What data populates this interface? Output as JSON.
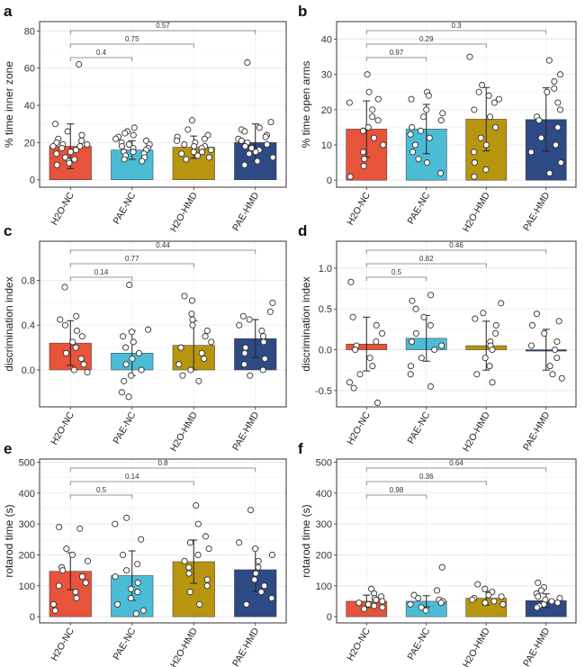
{
  "chart_data": [
    {
      "panel": "a",
      "type": "bar",
      "ylabel": "% time inner zone",
      "ylim": [
        -4,
        85
      ],
      "yticks": [
        0,
        20,
        40,
        60,
        80
      ],
      "categories": [
        "H2O-NC",
        "PAE-NC",
        "H2O-HMD",
        "PAE-HMD"
      ],
      "values": [
        18,
        16,
        17.5,
        20
      ],
      "errors": [
        12,
        5,
        6,
        10
      ],
      "colors": [
        "#e8533b",
        "#4bbcd6",
        "#b8950f",
        "#2e4a85"
      ],
      "points": [
        [
          62,
          30,
          26,
          24,
          22,
          21,
          20,
          19,
          19,
          18,
          18,
          17,
          16,
          15,
          14,
          12,
          11,
          10,
          9,
          8
        ],
        [
          28,
          26,
          25,
          24,
          23,
          22,
          21,
          20,
          19,
          19,
          18,
          17,
          17,
          16,
          15,
          15,
          14,
          13,
          12,
          11,
          10
        ],
        [
          32,
          27,
          24,
          23,
          22,
          21,
          20,
          19,
          18,
          18,
          17,
          16,
          15,
          15,
          14,
          13,
          12,
          11
        ],
        [
          63,
          31,
          28,
          27,
          26,
          24,
          23,
          22,
          21,
          20,
          19,
          18,
          17,
          16,
          15,
          14,
          12,
          10,
          8
        ]
      ],
      "comparisons": [
        {
          "from": 0,
          "to": 1,
          "label": "0.4"
        },
        {
          "from": 0,
          "to": 2,
          "label": "0.75"
        },
        {
          "from": 0,
          "to": 3,
          "label": "0.57"
        }
      ]
    },
    {
      "panel": "b",
      "type": "bar",
      "ylabel": "% time open arms",
      "ylim": [
        -2,
        45
      ],
      "yticks": [
        0,
        10,
        20,
        30,
        40
      ],
      "categories": [
        "H2O-NC",
        "PAE-NC",
        "H2O-HMD",
        "PAE-HMD"
      ],
      "values": [
        14.5,
        14.5,
        17.3,
        17.2
      ],
      "errors": [
        8,
        7,
        9,
        9
      ],
      "colors": [
        "#e8533b",
        "#4bbcd6",
        "#b8950f",
        "#2e4a85"
      ],
      "points": [
        [
          30,
          25,
          23,
          22,
          20,
          18,
          17,
          15,
          14,
          12,
          10,
          8,
          6,
          4,
          1
        ],
        [
          25,
          24,
          23,
          20,
          19,
          18,
          17,
          15,
          14,
          13,
          12,
          10,
          8,
          6,
          5,
          2
        ],
        [
          35,
          27,
          25,
          24,
          23,
          22,
          20,
          18,
          15,
          12,
          10,
          8,
          5,
          3,
          1
        ],
        [
          34,
          30,
          28,
          26,
          25,
          22,
          20,
          18,
          17,
          15,
          12,
          10,
          8,
          5,
          2
        ]
      ],
      "comparisons": [
        {
          "from": 0,
          "to": 1,
          "label": "0.97"
        },
        {
          "from": 0,
          "to": 2,
          "label": "0.29"
        },
        {
          "from": 0,
          "to": 3,
          "label": "0.3"
        }
      ]
    },
    {
      "panel": "c",
      "type": "bar",
      "ylabel": "discrimination index",
      "ylim": [
        -0.33,
        1.15
      ],
      "yticks": [
        0.0,
        0.4,
        0.8
      ],
      "ytick_labels": [
        "0.0",
        "0.4",
        "0.8"
      ],
      "categories": [
        "H2O-NC",
        "PAE-NC",
        "H2O-HMD",
        "PAE-HMD"
      ],
      "values": [
        0.24,
        0.15,
        0.22,
        0.28
      ],
      "errors": [
        0.2,
        0.2,
        0.22,
        0.17
      ],
      "colors": [
        "#e8533b",
        "#4bbcd6",
        "#b8950f",
        "#2e4a85"
      ],
      "points": [
        [
          0.74,
          0.48,
          0.45,
          0.4,
          0.35,
          0.3,
          0.25,
          0.2,
          0.15,
          0.1,
          0.05,
          0.0,
          -0.02
        ],
        [
          0.76,
          0.36,
          0.34,
          0.3,
          0.25,
          0.2,
          0.15,
          0.1,
          0.05,
          0.0,
          -0.05,
          -0.1,
          -0.2,
          -0.24
        ],
        [
          0.66,
          0.62,
          0.5,
          0.45,
          0.4,
          0.35,
          0.3,
          0.25,
          0.2,
          0.15,
          0.1,
          0.05,
          0.0,
          -0.05,
          -0.1
        ],
        [
          0.6,
          0.52,
          0.48,
          0.45,
          0.4,
          0.35,
          0.3,
          0.25,
          0.2,
          0.15,
          0.1,
          0.05,
          0.0,
          -0.05
        ]
      ],
      "comparisons": [
        {
          "from": 0,
          "to": 1,
          "label": "0.14"
        },
        {
          "from": 0,
          "to": 2,
          "label": "0.77"
        },
        {
          "from": 0,
          "to": 3,
          "label": "0.44"
        }
      ]
    },
    {
      "panel": "d",
      "type": "bar",
      "ylabel": "discrimination index",
      "ylim": [
        -0.7,
        1.33
      ],
      "yticks": [
        -0.5,
        0.0,
        0.5,
        1.0
      ],
      "ytick_labels": [
        "-0.5",
        "0.0",
        "0.5",
        "1.0"
      ],
      "categories": [
        "H2O-NC",
        "PAE-NC",
        "H2O-HMD",
        "PAE-HMD"
      ],
      "values": [
        0.07,
        0.14,
        0.05,
        0.0
      ],
      "errors": [
        0.33,
        0.28,
        0.3,
        0.25
      ],
      "colors": [
        "#e8533b",
        "#4bbcd6",
        "#b8950f",
        "#2e4a85"
      ],
      "points": [
        [
          0.83,
          0.4,
          0.3,
          0.2,
          0.1,
          0.05,
          0.0,
          -0.1,
          -0.2,
          -0.3,
          -0.4,
          -0.47,
          -0.65
        ],
        [
          0.67,
          0.6,
          0.5,
          0.4,
          0.3,
          0.2,
          0.1,
          0.05,
          0.0,
          -0.1,
          -0.2,
          -0.3,
          -0.45
        ],
        [
          0.57,
          0.45,
          0.38,
          0.3,
          0.2,
          0.1,
          0.05,
          0.0,
          -0.1,
          -0.2,
          -0.3,
          -0.4
        ],
        [
          0.44,
          0.35,
          0.3,
          0.2,
          0.1,
          0.05,
          0.0,
          -0.1,
          -0.2,
          -0.3,
          -0.35
        ]
      ],
      "comparisons": [
        {
          "from": 0,
          "to": 1,
          "label": "0.5"
        },
        {
          "from": 0,
          "to": 2,
          "label": "0.82"
        },
        {
          "from": 0,
          "to": 3,
          "label": "0.46"
        }
      ]
    },
    {
      "panel": "e",
      "type": "bar",
      "ylabel": "rotarod time (s)",
      "ylim": [
        -20,
        510
      ],
      "yticks": [
        0,
        100,
        200,
        300,
        400,
        500
      ],
      "categories": [
        "H2O-NC",
        "PAE-NC",
        "H2O-HMD",
        "PAE-HMD"
      ],
      "values": [
        147,
        133,
        178,
        152
      ],
      "errors": [
        60,
        80,
        70,
        70
      ],
      "colors": [
        "#e8533b",
        "#4bbcd6",
        "#b8950f",
        "#2e4a85"
      ],
      "points": [
        [
          290,
          285,
          220,
          200,
          180,
          160,
          150,
          130,
          110,
          100,
          80,
          60,
          40,
          20
        ],
        [
          320,
          300,
          250,
          200,
          170,
          150,
          130,
          110,
          90,
          80,
          60,
          40,
          20,
          10
        ],
        [
          360,
          300,
          260,
          240,
          220,
          200,
          180,
          160,
          140,
          120,
          100,
          80,
          40
        ],
        [
          345,
          240,
          220,
          200,
          180,
          160,
          140,
          120,
          100,
          80,
          60,
          40
        ]
      ],
      "comparisons": [
        {
          "from": 0,
          "to": 1,
          "label": "0.5"
        },
        {
          "from": 0,
          "to": 2,
          "label": "0.14"
        },
        {
          "from": 0,
          "to": 3,
          "label": "0.8"
        }
      ]
    },
    {
      "panel": "f",
      "type": "bar",
      "ylabel": "rotarod time (s)",
      "ylim": [
        -20,
        510
      ],
      "yticks": [
        0,
        100,
        200,
        300,
        400,
        500
      ],
      "categories": [
        "H2O-NC",
        "PAE-NC",
        "H2O-HMD",
        "PAE-HMD"
      ],
      "values": [
        50,
        50,
        60,
        52
      ],
      "errors": [
        20,
        18,
        22,
        22
      ],
      "colors": [
        "#e8533b",
        "#4bbcd6",
        "#b8950f",
        "#2e4a85"
      ],
      "points": [
        [
          90,
          75,
          65,
          60,
          55,
          50,
          45,
          40,
          35,
          30,
          25
        ],
        [
          160,
          85,
          70,
          60,
          55,
          50,
          45,
          40,
          30,
          20
        ],
        [
          105,
          90,
          80,
          70,
          65,
          60,
          55,
          50,
          45,
          40
        ],
        [
          110,
          95,
          85,
          75,
          65,
          60,
          55,
          50,
          45,
          40,
          35,
          30
        ]
      ],
      "comparisons": [
        {
          "from": 0,
          "to": 1,
          "label": "0.98"
        },
        {
          "from": 0,
          "to": 2,
          "label": "0.36"
        },
        {
          "from": 0,
          "to": 3,
          "label": "0.64"
        }
      ]
    }
  ]
}
